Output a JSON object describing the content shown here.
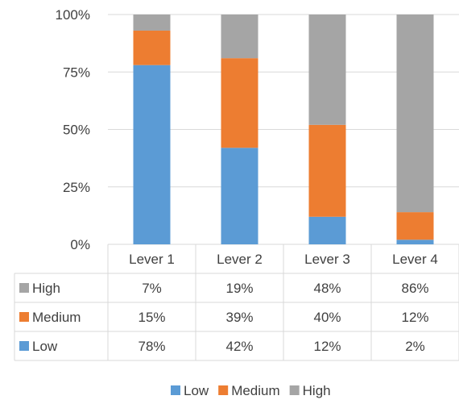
{
  "chart_data": {
    "type": "bar",
    "stacked": true,
    "percent_stacked": true,
    "categories": [
      "Lever 1",
      "Lever 2",
      "Lever 3",
      "Lever 4"
    ],
    "series": [
      {
        "name": "Low",
        "values": [
          78,
          42,
          12,
          2
        ],
        "labels": [
          "78%",
          "42%",
          "12%",
          "2%"
        ],
        "color": "#5b9bd5"
      },
      {
        "name": "Medium",
        "values": [
          15,
          39,
          40,
          12
        ],
        "labels": [
          "15%",
          "39%",
          "40%",
          "12%"
        ],
        "color": "#ed7d31"
      },
      {
        "name": "High",
        "values": [
          7,
          19,
          48,
          86
        ],
        "labels": [
          "7%",
          "19%",
          "48%",
          "86%"
        ],
        "color": "#a5a5a5"
      }
    ],
    "ylim": [
      0,
      100
    ],
    "y_ticks": [
      0,
      25,
      50,
      75,
      100
    ],
    "y_tick_labels": [
      "0%",
      "25%",
      "50%",
      "75%",
      "100%"
    ],
    "grid": true,
    "legend": "bottom",
    "data_table": true,
    "table_row_order": [
      "High",
      "Medium",
      "Low"
    ]
  }
}
